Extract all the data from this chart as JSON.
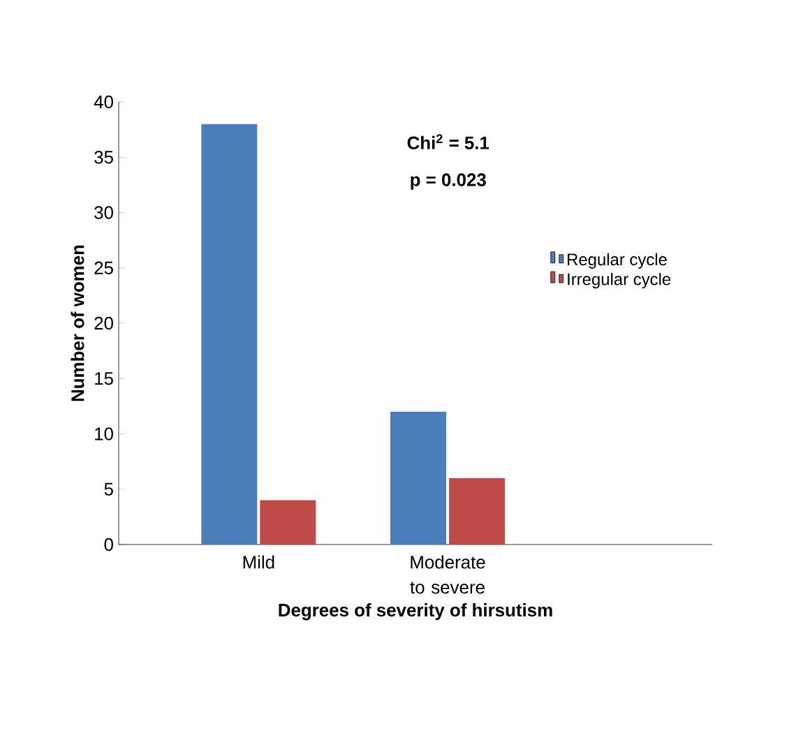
{
  "chart_data": {
    "type": "bar",
    "xlabel": "Degrees of severity of hirsutism",
    "ylabel": "Number of women",
    "categories": [
      "Mild",
      "Moderate to severe"
    ],
    "series": [
      {
        "name": "Regular cycle",
        "color": "#4a7ebb",
        "values": [
          38,
          12
        ]
      },
      {
        "name": "Irregular cycle",
        "color": "#be4b48",
        "values": [
          4,
          6
        ]
      }
    ],
    "ylim": [
      0,
      40
    ],
    "yticks": [
      0,
      5,
      10,
      15,
      20,
      25,
      30,
      35,
      40
    ],
    "grid": false,
    "legend": "right",
    "annotations": [
      "Chi$^{2}$ = 5.1",
      "p = 0.023"
    ]
  }
}
